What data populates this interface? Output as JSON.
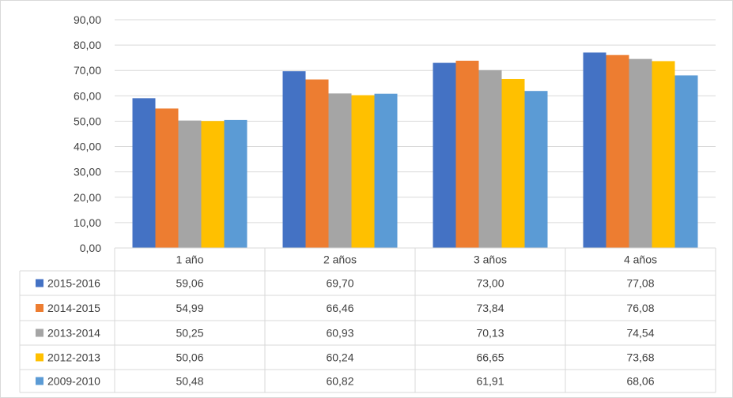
{
  "chart_data": {
    "type": "bar",
    "categories": [
      "1 año",
      "2 años",
      "3 años",
      "4 años"
    ],
    "series": [
      {
        "name": "2015-2016",
        "color": "#4472c4",
        "values": [
          59.06,
          69.7,
          73.0,
          77.08
        ],
        "labels": [
          "59,06",
          "69,70",
          "73,00",
          "77,08"
        ]
      },
      {
        "name": "2014-2015",
        "color": "#ed7d31",
        "values": [
          54.99,
          66.46,
          73.84,
          76.08
        ],
        "labels": [
          "54,99",
          "66,46",
          "73,84",
          "76,08"
        ]
      },
      {
        "name": "2013-2014",
        "color": "#a5a5a5",
        "values": [
          50.25,
          60.93,
          70.13,
          74.54
        ],
        "labels": [
          "50,25",
          "60,93",
          "70,13",
          "74,54"
        ]
      },
      {
        "name": "2012-2013",
        "color": "#ffc000",
        "values": [
          50.06,
          60.24,
          66.65,
          73.68
        ],
        "labels": [
          "50,06",
          "60,24",
          "66,65",
          "73,68"
        ]
      },
      {
        "name": "2009-2010",
        "color": "#5b9bd5",
        "values": [
          50.48,
          60.82,
          61.91,
          68.06
        ],
        "labels": [
          "50,48",
          "60,82",
          "61,91",
          "68,06"
        ]
      }
    ],
    "yticks": [
      0,
      10,
      20,
      30,
      40,
      50,
      60,
      70,
      80,
      90
    ],
    "ytick_labels": [
      "0,00",
      "10,00",
      "20,00",
      "30,00",
      "40,00",
      "50,00",
      "60,00",
      "70,00",
      "80,00",
      "90,00"
    ],
    "ylim": [
      0,
      90
    ],
    "grid": true,
    "legend": "data table below chart"
  }
}
